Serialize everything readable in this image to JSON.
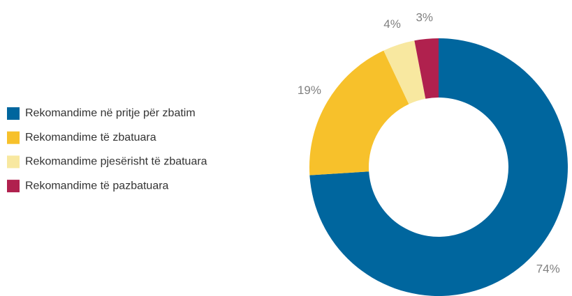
{
  "chart_data": {
    "type": "donut",
    "categories": [
      "Rekomandime në pritje për zbatim",
      "Rekomandime të zbatuara",
      "Rekomandime pjesërisht të zbatuara",
      "Rekomandime të pazbatuara"
    ],
    "values": [
      74,
      19,
      4,
      3
    ],
    "value_labels": [
      "74%",
      "19%",
      "4%",
      "3%"
    ],
    "colors": [
      "#00669e",
      "#f7c12b",
      "#f8e8a0",
      "#b0214e"
    ],
    "legend": "left"
  }
}
